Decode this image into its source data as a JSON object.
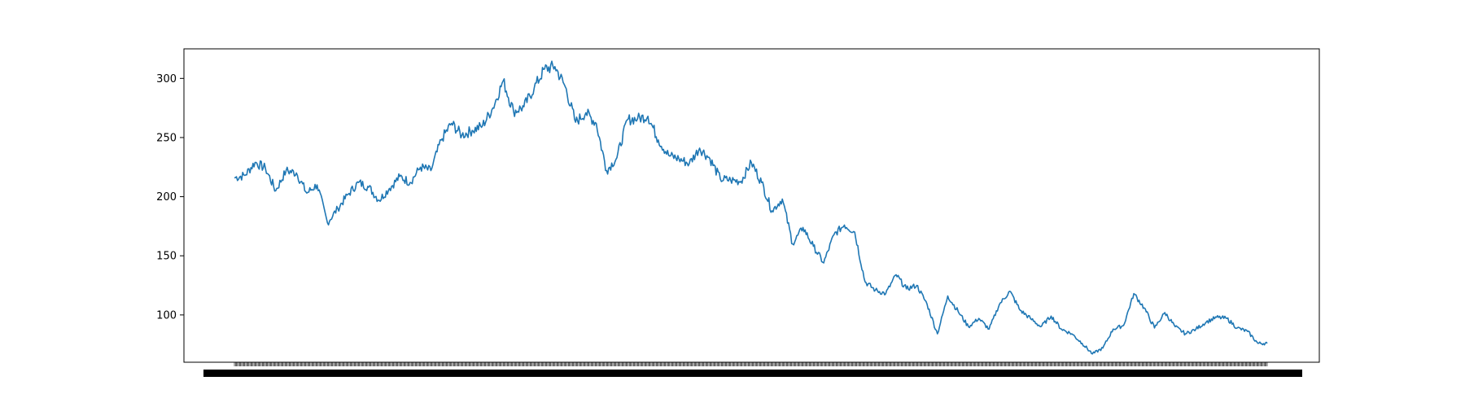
{
  "chart_data": {
    "type": "line",
    "title": "",
    "xlabel": "",
    "ylabel": "",
    "grid": false,
    "legend": "none",
    "ylim": [
      60,
      325
    ],
    "yticks": [
      100,
      150,
      200,
      250,
      300
    ],
    "y_tick_labels": [
      "100",
      "150",
      "200",
      "250",
      "300"
    ],
    "x_tick_count": 1000,
    "x_tick_labels_note": "dense overlapping date labels, illegible",
    "series": [
      {
        "color": "#1f77b4",
        "x": [
          0,
          10,
          20,
          30,
          40,
          50,
          60,
          70,
          80,
          90,
          100,
          110,
          120,
          130,
          140,
          150,
          160,
          170,
          180,
          190,
          200,
          210,
          220,
          230,
          240,
          250,
          260,
          270,
          280,
          290,
          300,
          310,
          320,
          330,
          340,
          350,
          360,
          370,
          380,
          390,
          400,
          410,
          420,
          430,
          440,
          450,
          460,
          470,
          480,
          490,
          500,
          510,
          520,
          530,
          540,
          550,
          560,
          570,
          580,
          590,
          600,
          610,
          620,
          630,
          640,
          650,
          660,
          670,
          680,
          690,
          700,
          710,
          720,
          730,
          740,
          750,
          760,
          770,
          780,
          790,
          800,
          810,
          820,
          830,
          840,
          850,
          860,
          870,
          880,
          890,
          900,
          910,
          920,
          930,
          940,
          950,
          960,
          970,
          980,
          990,
          999
        ],
        "y": [
          216,
          218,
          229,
          224,
          205,
          222,
          220,
          203,
          210,
          178,
          190,
          202,
          212,
          208,
          197,
          207,
          217,
          212,
          225,
          222,
          248,
          262,
          252,
          256,
          260,
          275,
          298,
          272,
          276,
          292,
          308,
          310,
          293,
          263,
          271,
          262,
          222,
          233,
          265,
          266,
          268,
          248,
          235,
          232,
          228,
          241,
          232,
          215,
          214,
          213,
          229,
          212,
          188,
          198,
          160,
          174,
          158,
          144,
          168,
          176,
          170,
          128,
          121,
          118,
          134,
          122,
          125,
          109,
          84,
          116,
          103,
          90,
          97,
          88,
          109,
          120,
          104,
          97,
          90,
          99,
          88,
          84,
          76,
          67,
          72,
          88,
          91,
          118,
          106,
          89,
          102,
          90,
          84,
          88,
          94,
          98,
          97,
          89,
          86,
          76,
          76
        ]
      }
    ]
  }
}
